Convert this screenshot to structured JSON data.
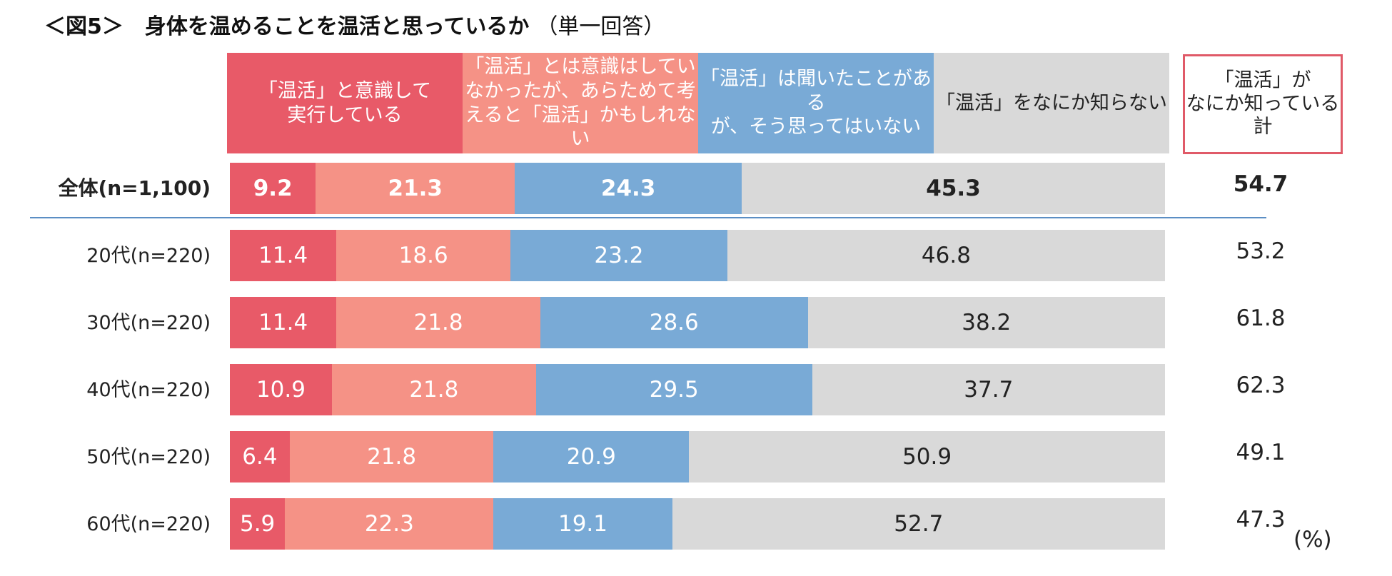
{
  "title": {
    "main": "＜図5＞　身体を温めることを温活と思っているか",
    "sub": "（単一回答）"
  },
  "colors": {
    "conscious": "#e85a68",
    "maybe": "#f59286",
    "heard": "#79aad6",
    "unknown": "#d9d9d9",
    "total_border": "#e05a68",
    "separator": "#5b8ec4"
  },
  "legend": [
    {
      "lines": [
        "「温活」と意識して",
        "実行している"
      ]
    },
    {
      "lines": [
        "「温活」とは意識はしてい",
        "なかったが、あらためて考",
        "えると「温活」かもしれない"
      ]
    },
    {
      "lines": [
        "「温活」は聞いたことがある",
        "が、そう思ってはいない"
      ]
    },
    {
      "lines": [
        "「温活」をなにか知らない"
      ]
    }
  ],
  "total_header": {
    "lines": [
      "「温活」が",
      "なにか知っている",
      "計"
    ]
  },
  "unit": "(%)",
  "chart_data": {
    "type": "bar",
    "orientation": "horizontal",
    "stacked": true,
    "percent_stacked": true,
    "title": "身体を温めることを温活と思っているか（単一回答）",
    "categories": [
      "全体(n=1,100)",
      "20代(n=220)",
      "30代(n=220)",
      "40代(n=220)",
      "50代(n=220)",
      "60代(n=220)"
    ],
    "series": [
      {
        "name": "「温活」と意識して実行している",
        "values": [
          9.2,
          11.4,
          11.4,
          10.9,
          6.4,
          5.9
        ]
      },
      {
        "name": "「温活」とは意識はしていなかったが、あらためて考えると「温活」かもしれない",
        "values": [
          21.3,
          18.6,
          21.8,
          21.8,
          21.8,
          22.3
        ]
      },
      {
        "name": "「温活」は聞いたことがあるが、そう思ってはいない",
        "values": [
          24.3,
          23.2,
          28.6,
          29.5,
          20.9,
          19.1
        ]
      },
      {
        "name": "「温活」をなにか知らない",
        "values": [
          45.3,
          46.8,
          38.2,
          37.7,
          50.9,
          52.7
        ]
      }
    ],
    "labels": [
      [
        "9.2",
        "11.4",
        "11.4",
        "10.9",
        "6.4",
        "5.9"
      ],
      [
        "21.3",
        "18.6",
        "21.8",
        "21.8",
        "21.8",
        "22.3"
      ],
      [
        "24.3",
        "23.2",
        "28.6",
        "29.5",
        "20.9",
        "19.1"
      ],
      [
        "45.3",
        "46.8",
        "38.2",
        "37.7",
        "50.9",
        "52.7"
      ]
    ],
    "totals": {
      "name": "「温活」がなにか知っている計",
      "values": [
        54.7,
        53.2,
        61.8,
        62.3,
        49.1,
        47.3
      ],
      "labels": [
        "54.7",
        "53.2",
        "61.8",
        "62.3",
        "49.1",
        "47.3"
      ]
    },
    "highlight_category": "全体(n=1,100)",
    "xlim": [
      0,
      100
    ],
    "ylabel": "",
    "xlabel": "",
    "unit": "%"
  }
}
